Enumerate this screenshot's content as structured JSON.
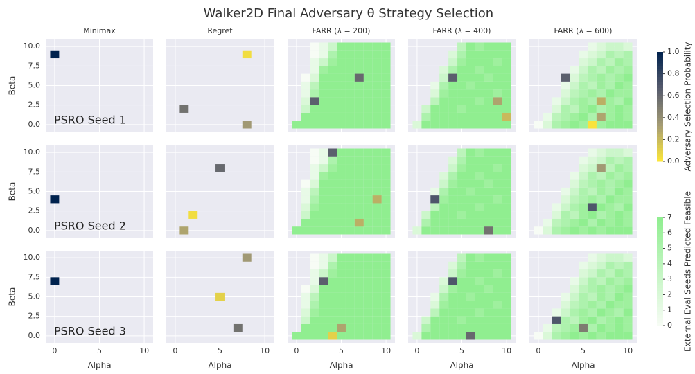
{
  "chart_data": {
    "type": "heatmap-grid",
    "title": "Walker2D Final Adversary θ Strategy Selection",
    "xlabel": "Alpha",
    "ylabel": "Beta",
    "xlim": [
      -1,
      11
    ],
    "ylim": [
      -0.9,
      10.9
    ],
    "xticks": [
      0,
      5,
      10
    ],
    "yticks": [
      {
        "value": 0,
        "label": "0.0"
      },
      {
        "value": 2.5,
        "label": "2.5"
      },
      {
        "value": 5,
        "label": "5.0"
      },
      {
        "value": 7.5,
        "label": "7.5"
      },
      {
        "value": 10,
        "label": "10.0"
      }
    ],
    "grid": true,
    "rows": [
      "PSRO Seed 1",
      "PSRO Seed 2",
      "PSRO Seed 3"
    ],
    "columns": [
      {
        "title": "Minimax"
      },
      {
        "title": "Regret"
      },
      {
        "title": "FARR (λ = 200)",
        "feasibility": [
          [
            7,
            7,
            7,
            7,
            7,
            7,
            7,
            7,
            7,
            7,
            7
          ],
          [
            null,
            7,
            7,
            7,
            7,
            7,
            7,
            7,
            7,
            7,
            7
          ],
          [
            null,
            3,
            7,
            7,
            7,
            7,
            7,
            7,
            7,
            7,
            7
          ],
          [
            null,
            2,
            6,
            7,
            7,
            7,
            7,
            7,
            7,
            7,
            7
          ],
          [
            null,
            1,
            5,
            7,
            7,
            7,
            7,
            7,
            7,
            7,
            7
          ],
          [
            null,
            1,
            4,
            7,
            7,
            7,
            7,
            7,
            7,
            7,
            7
          ],
          [
            null,
            0,
            2,
            7,
            7,
            7,
            7,
            7,
            7,
            7,
            7
          ],
          [
            null,
            null,
            1,
            6,
            7,
            7,
            7,
            7,
            7,
            7,
            7
          ],
          [
            null,
            null,
            1,
            3,
            6,
            7,
            7,
            7,
            7,
            7,
            7
          ],
          [
            null,
            null,
            0,
            1,
            5,
            7,
            7,
            7,
            7,
            7,
            7
          ],
          [
            null,
            null,
            0,
            1,
            3,
            7,
            7,
            7,
            7,
            7,
            7
          ]
        ]
      },
      {
        "title": "FARR (λ = 400)",
        "feasibility": [
          [
            2,
            7,
            7,
            7,
            7,
            7,
            7,
            7,
            7,
            7,
            7
          ],
          [
            null,
            5,
            7,
            7,
            7,
            7,
            7,
            7,
            7,
            7,
            7
          ],
          [
            null,
            3,
            7,
            7,
            7,
            6,
            7,
            7,
            7,
            7,
            7
          ],
          [
            null,
            null,
            4,
            7,
            7,
            7,
            7,
            6,
            7,
            7,
            7
          ],
          [
            null,
            null,
            2,
            6,
            7,
            7,
            7,
            7,
            7,
            6,
            7
          ],
          [
            null,
            null,
            1,
            5,
            7,
            7,
            6,
            7,
            7,
            7,
            7
          ],
          [
            null,
            null,
            null,
            3,
            6,
            7,
            7,
            7,
            6,
            7,
            7
          ],
          [
            null,
            null,
            null,
            2,
            5,
            7,
            7,
            6,
            7,
            7,
            7
          ],
          [
            null,
            null,
            null,
            null,
            3,
            6,
            7,
            7,
            7,
            6,
            7
          ],
          [
            null,
            null,
            null,
            null,
            2,
            5,
            7,
            7,
            7,
            7,
            7
          ],
          [
            null,
            null,
            null,
            null,
            null,
            4,
            7,
            6,
            7,
            7,
            7
          ]
        ]
      },
      {
        "title": "FARR (λ = 600)",
        "feasibility": [
          [
            0,
            2,
            5,
            6,
            7,
            6,
            7,
            6,
            7,
            7,
            7
          ],
          [
            null,
            1,
            4,
            5,
            6,
            7,
            5,
            7,
            6,
            7,
            6
          ],
          [
            null,
            null,
            2,
            5,
            4,
            6,
            7,
            5,
            6,
            7,
            6
          ],
          [
            null,
            null,
            1,
            3,
            5,
            6,
            5,
            7,
            6,
            5,
            7
          ],
          [
            null,
            null,
            null,
            2,
            4,
            5,
            6,
            5,
            7,
            6,
            6
          ],
          [
            null,
            null,
            null,
            1,
            3,
            5,
            4,
            6,
            5,
            7,
            6
          ],
          [
            null,
            null,
            null,
            null,
            2,
            4,
            5,
            6,
            5,
            6,
            7
          ],
          [
            null,
            null,
            null,
            null,
            1,
            3,
            5,
            4,
            6,
            5,
            6
          ],
          [
            null,
            null,
            null,
            null,
            null,
            2,
            3,
            5,
            4,
            6,
            5
          ],
          [
            null,
            null,
            null,
            null,
            null,
            1,
            2,
            3,
            5,
            4,
            5
          ],
          [
            null,
            null,
            null,
            null,
            null,
            null,
            1,
            2,
            3,
            3,
            2
          ]
        ]
      }
    ],
    "selections": [
      [
        [
          [
            0,
            9,
            1.0
          ]
        ],
        [
          [
            8,
            9,
            0.05
          ],
          [
            1,
            2,
            0.55
          ],
          [
            8,
            0,
            0.35
          ]
        ],
        [
          [
            7,
            6,
            0.6
          ],
          [
            2,
            3,
            0.65
          ]
        ],
        [
          [
            4,
            6,
            0.65
          ],
          [
            9,
            3,
            0.3
          ],
          [
            10,
            1,
            0.2
          ]
        ],
        [
          [
            3,
            6,
            0.65
          ],
          [
            7,
            3,
            0.25
          ],
          [
            7,
            1,
            0.3
          ],
          [
            6,
            0,
            0.02
          ]
        ]
      ],
      [
        [
          [
            0,
            4,
            1.0
          ]
        ],
        [
          [
            5,
            8,
            0.6
          ],
          [
            2,
            2,
            0.05
          ],
          [
            1,
            0,
            0.3
          ]
        ],
        [
          [
            4,
            10,
            0.65
          ],
          [
            9,
            4,
            0.25
          ],
          [
            7,
            1,
            0.25
          ]
        ],
        [
          [
            2,
            4,
            0.7
          ],
          [
            8,
            0,
            0.55
          ]
        ],
        [
          [
            7,
            8,
            0.35
          ],
          [
            6,
            3,
            0.7
          ]
        ]
      ],
      [
        [
          [
            0,
            7,
            1.0
          ]
        ],
        [
          [
            8,
            10,
            0.35
          ],
          [
            5,
            5,
            0.1
          ],
          [
            7,
            1,
            0.55
          ]
        ],
        [
          [
            3,
            7,
            0.65
          ],
          [
            5,
            1,
            0.3
          ],
          [
            4,
            0,
            0.1
          ]
        ],
        [
          [
            4,
            7,
            0.7
          ],
          [
            6,
            0,
            0.6
          ]
        ],
        [
          [
            2,
            2,
            0.7
          ],
          [
            5,
            1,
            0.5
          ]
        ]
      ]
    ],
    "prob_colorbar": {
      "label": "Adversary Selection Probability",
      "lim": [
        0,
        1
      ],
      "colors": [
        "#fee838",
        "#a59c74",
        "#575c6d",
        "#00224e"
      ],
      "ticks": [
        {
          "value": 0,
          "label": "0.0"
        },
        {
          "value": 0.2,
          "label": "0.2"
        },
        {
          "value": 0.4,
          "label": "0.4"
        },
        {
          "value": 0.6,
          "label": "0.6"
        },
        {
          "value": 0.8,
          "label": "0.8"
        },
        {
          "value": 1,
          "label": "1.0"
        }
      ]
    },
    "feasible_colorbar": {
      "label": "External Eval Seeds Predicted Feasible",
      "lim": [
        0,
        7
      ],
      "colors": [
        "#f7fcf5",
        "#90ee90"
      ],
      "ticks": [
        0,
        1,
        2,
        3,
        4,
        5,
        6,
        7
      ]
    }
  }
}
